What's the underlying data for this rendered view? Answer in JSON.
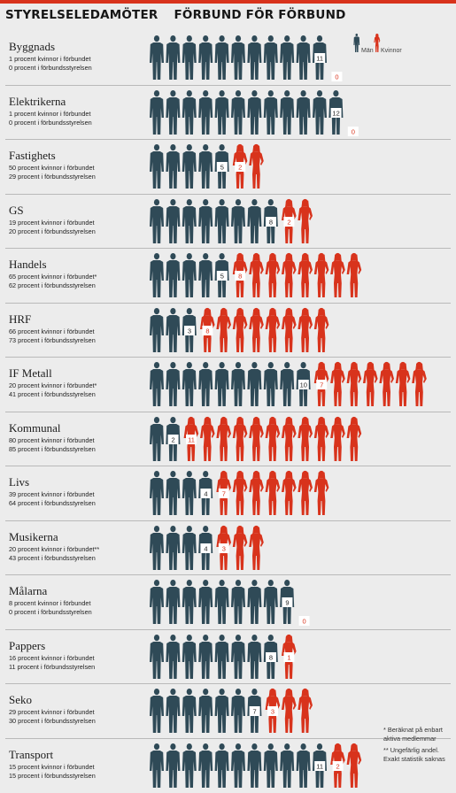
{
  "header": {
    "title": "STYRELSELEDAMÖTER",
    "subtitle": "FÖRBUND FÖR FÖRBUND"
  },
  "legend": {
    "men": "Män",
    "women": "Kvinnor"
  },
  "colors": {
    "men": "#2f4a57",
    "women": "#d8331c",
    "accent": "#d8331c"
  },
  "footnotes": {
    "f1_line1": "* Beräknat på enbart",
    "f1_line2": "aktiva medlemmar",
    "f2_line1": "** Ungefärlig andel.",
    "f2_line2": "Exakt statistik saknas"
  },
  "chart_data": {
    "type": "pictogram",
    "title": "STYRELSELEDAMÖTER",
    "subtitle": "FÖRBUND FÖR FÖRBUND",
    "series": [
      {
        "name": "Män"
      },
      {
        "name": "Kvinnor"
      }
    ],
    "rows": [
      {
        "union": "Byggnads",
        "line1": "1 procent kvinnor i förbundet",
        "line2": "0 procent i förbundsstyrelsen",
        "men": 11,
        "women": 0
      },
      {
        "union": "Elektrikerna",
        "line1": "1 procent kvinnor i förbundet",
        "line2": "0 procent i förbundsstyrelsen",
        "men": 12,
        "women": 0
      },
      {
        "union": "Fastighets",
        "line1": "50 procent kvinnor i förbundet",
        "line2": "29 procent i förbundsstyrelsen",
        "men": 5,
        "women": 2
      },
      {
        "union": "GS",
        "line1": "19 procent kvinnor i förbundet",
        "line2": "20 procent i förbundsstyrelsen",
        "men": 8,
        "women": 2
      },
      {
        "union": "Handels",
        "line1": "65 procent kvinnor i förbundet*",
        "line2": "62 procent i förbundsstyrelsen",
        "men": 5,
        "women": 8
      },
      {
        "union": "HRF",
        "line1": "66 procent kvinnor i förbundet",
        "line2": "73 procent i förbundsstyrelsen",
        "men": 3,
        "women": 8
      },
      {
        "union": "IF Metall",
        "line1": "20 procent kvinnor i förbundet*",
        "line2": "41 procent i förbundsstyrelsen",
        "men": 10,
        "women": 7
      },
      {
        "union": "Kommunal",
        "line1": "80 procent kvinnor i förbundet",
        "line2": "85 procent i förbundsstyrelsen",
        "men": 2,
        "women": 11
      },
      {
        "union": "Livs",
        "line1": "39 procent kvinnor i förbundet",
        "line2": "64 procent i förbundsstyrelsen",
        "men": 4,
        "women": 7
      },
      {
        "union": "Musikerna",
        "line1": "20 procent kvinnor i förbundet**",
        "line2": "43 procent i förbundsstyrelsen",
        "men": 4,
        "women": 3
      },
      {
        "union": "Målarna",
        "line1": "8 procent kvinnor i förbundet",
        "line2": "0 procent i förbundsstyrelsen",
        "men": 9,
        "women": 0
      },
      {
        "union": "Pappers",
        "line1": "16 procent kvinnor i förbundet",
        "line2": "11 procent i förbundsstyrelsen",
        "men": 8,
        "women": 1
      },
      {
        "union": "Seko",
        "line1": "29 procent kvinnor i förbundet",
        "line2": "30 procent i förbundsstyrelsen",
        "men": 7,
        "women": 3
      },
      {
        "union": "Transport",
        "line1": "15 procent kvinnor i förbundet",
        "line2": "15 procent i förbundsstyrelsen",
        "men": 11,
        "women": 2
      }
    ]
  }
}
